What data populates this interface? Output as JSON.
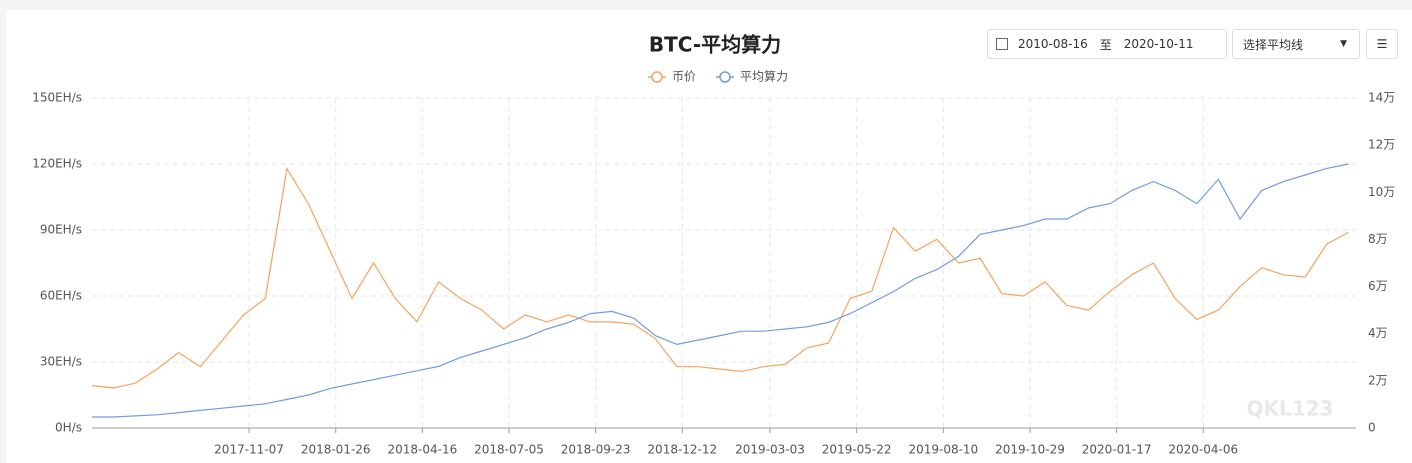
{
  "chart_data": {
    "type": "line",
    "title": "BTC-平均算力",
    "x": [
      "2017-06-15",
      "2017-07-05",
      "2017-07-25",
      "2017-08-14",
      "2017-09-03",
      "2017-09-23",
      "2017-10-13",
      "2017-11-02",
      "2017-11-22",
      "2017-12-12",
      "2018-01-01",
      "2018-01-21",
      "2018-02-10",
      "2018-03-02",
      "2018-03-22",
      "2018-04-11",
      "2018-05-01",
      "2018-05-21",
      "2018-06-10",
      "2018-06-30",
      "2018-07-20",
      "2018-08-09",
      "2018-08-29",
      "2018-09-18",
      "2018-10-08",
      "2018-10-28",
      "2018-11-17",
      "2018-12-07",
      "2018-12-27",
      "2019-01-16",
      "2019-02-05",
      "2019-02-25",
      "2019-03-17",
      "2019-04-06",
      "2019-04-26",
      "2019-05-16",
      "2019-06-05",
      "2019-06-25",
      "2019-07-15",
      "2019-08-04",
      "2019-08-24",
      "2019-09-13",
      "2019-10-03",
      "2019-10-23",
      "2019-11-12",
      "2019-12-02",
      "2019-12-22",
      "2020-01-11",
      "2020-01-31",
      "2020-02-20",
      "2020-03-11",
      "2020-03-31",
      "2020-04-20",
      "2020-05-10",
      "2020-05-30",
      "2020-06-19",
      "2020-07-09",
      "2020-07-29",
      "2020-08-18"
    ],
    "series": [
      {
        "name": "币价",
        "color": "#f5a35e",
        "axis": "y2",
        "values": [
          18000,
          17000,
          19000,
          25000,
          32000,
          26000,
          37000,
          48000,
          55000,
          110000,
          95000,
          75000,
          55000,
          70000,
          55000,
          45000,
          62000,
          55000,
          50000,
          42000,
          48000,
          45000,
          48000,
          45000,
          45000,
          44000,
          38000,
          26000,
          26000,
          25000,
          24000,
          26000,
          27000,
          34000,
          36000,
          55000,
          58000,
          85000,
          75000,
          80000,
          70000,
          72000,
          57000,
          56000,
          62000,
          52000,
          50000,
          58000,
          65000,
          70000,
          55000,
          46000,
          50000,
          60000,
          68000,
          65000,
          64000,
          78000,
          83000
        ]
      },
      {
        "name": "平均算力",
        "color": "#6f9de0",
        "axis": "y",
        "values": [
          5,
          5,
          5.5,
          6,
          7,
          8,
          9,
          10,
          11,
          13,
          15,
          18,
          20,
          22,
          24,
          26,
          28,
          32,
          35,
          38,
          41,
          45,
          48,
          52,
          53,
          50,
          42,
          38,
          40,
          42,
          44,
          44,
          45,
          46,
          48,
          52,
          57,
          62,
          68,
          72,
          78,
          88,
          90,
          92,
          95,
          95,
          100,
          102,
          108,
          112,
          108,
          102,
          113,
          95,
          108,
          112,
          115,
          118,
          120
        ]
      }
    ],
    "xlim": [
      "2017-06-15",
      "2020-08-25"
    ],
    "xticks": [
      "2017-11-07",
      "2018-01-26",
      "2018-04-16",
      "2018-07-05",
      "2018-09-23",
      "2018-12-12",
      "2019-03-03",
      "2019-05-22",
      "2019-08-10",
      "2019-10-29",
      "2020-01-17",
      "2020-04-06"
    ],
    "ylim": [
      0,
      150
    ],
    "yticks": [
      {
        "value": 0,
        "label": "0H/s"
      },
      {
        "value": 30,
        "label": "30EH/s"
      },
      {
        "value": 60,
        "label": "60EH/s"
      },
      {
        "value": 90,
        "label": "90EH/s"
      },
      {
        "value": 120,
        "label": "120EH/s"
      },
      {
        "value": 150,
        "label": "150EH/s"
      }
    ],
    "y2lim": [
      0,
      140000
    ],
    "y2ticks": [
      0,
      {
        "value": 20000,
        "label": "2万"
      },
      {
        "value": 40000,
        "label": "4万"
      },
      {
        "value": 60000,
        "label": "6万"
      },
      {
        "value": 80000,
        "label": "8万"
      },
      {
        "value": 100000,
        "label": "10万"
      },
      {
        "value": 120000,
        "label": "12万"
      },
      {
        "value": 140000,
        "label": "14万"
      }
    ],
    "grid": true
  },
  "controls": {
    "start_date": "2010-08-16",
    "separator": "至",
    "end_date": "2020-10-11",
    "average_select": "选择平均线"
  },
  "watermark": "QKL123"
}
